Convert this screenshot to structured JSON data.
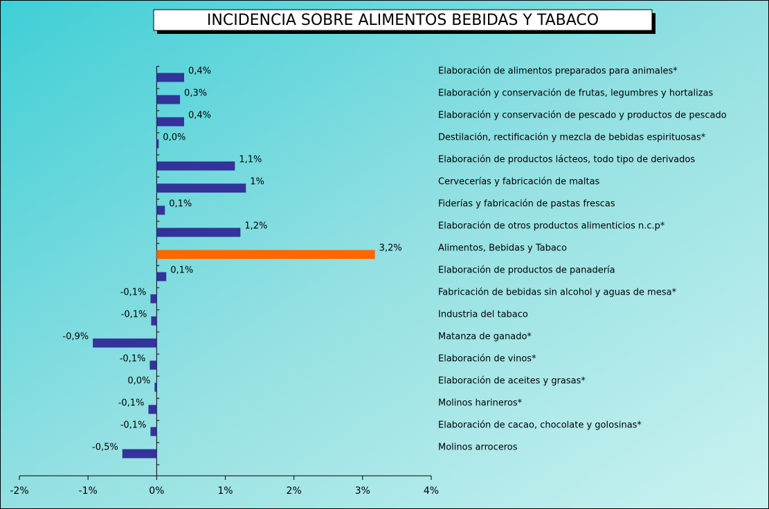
{
  "chart_data": {
    "type": "barh",
    "title": "INCIDENCIA SOBRE ALIMENTOS BEBIDAS Y TABACO",
    "categories": [
      "Elaboración de alimentos preparados para animales*",
      "Elaboración y conservación de frutas, legumbres y hortalizas",
      "Elaboración y conservación de pescado y productos de pescado",
      "Destilación, rectificación y mezcla de bebidas espirituosas*",
      "Elaboración de productos lácteos, todo tipo de derivados",
      "Cervecerías y fabricación de maltas",
      "Fiderías y fabricación de pastas frescas",
      "Elaboración de otros productos alimenticios n.c.p*",
      "Alimentos, Bebidas y Tabaco",
      "Elaboración de productos de panadería",
      "Fabricación de bebidas sin alcohol y aguas de mesa*",
      "Industria del tabaco",
      "Matanza de ganado*",
      "Elaboración de vinos*",
      "Elaboración de aceites y grasas*",
      "Molinos harineros*",
      "Elaboración de cacao, chocolate y golosinas*",
      "Molinos arroceros"
    ],
    "values": [
      0.4,
      0.34,
      0.4,
      0.03,
      1.14,
      1.3,
      0.12,
      1.22,
      3.18,
      0.14,
      -0.09,
      -0.08,
      -0.93,
      -0.1,
      -0.03,
      -0.12,
      -0.09,
      -0.5
    ],
    "value_labels": [
      "0,4%",
      "0,3%",
      "0,4%",
      "0,0%",
      "1,1%",
      "1%",
      "0,1%",
      "1,2%",
      "3,2%",
      "0,1%",
      "-0,1%",
      "-0,1%",
      "-0,9%",
      "-0,1%",
      "0,0%",
      "-0,1%",
      "-0,1%",
      "-0,5%"
    ],
    "colors": [
      "#333399",
      "#333399",
      "#333399",
      "#333399",
      "#333399",
      "#333399",
      "#333399",
      "#333399",
      "#ff6600",
      "#333399",
      "#333399",
      "#333399",
      "#333399",
      "#333399",
      "#333399",
      "#333399",
      "#333399",
      "#333399"
    ],
    "xlim": [
      -2,
      4
    ],
    "xticks": [
      {
        "value": -2,
        "label": "-2%"
      },
      {
        "value": -1,
        "label": "-1%"
      },
      {
        "value": 0,
        "label": "0%"
      },
      {
        "value": 1,
        "label": "1%"
      },
      {
        "value": 2,
        "label": "2%"
      },
      {
        "value": 3,
        "label": "3%"
      },
      {
        "value": 4,
        "label": "4%"
      }
    ],
    "grid": false
  }
}
